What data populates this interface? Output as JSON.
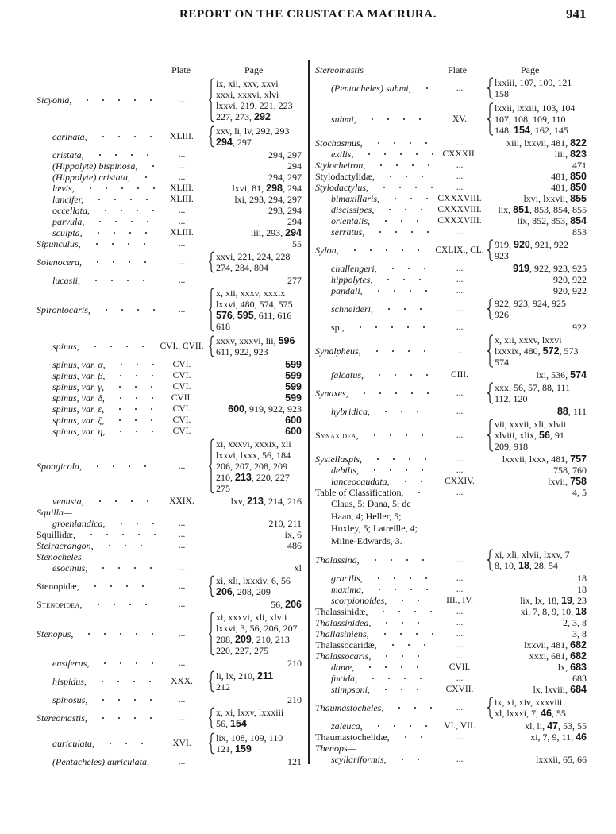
{
  "header": {
    "title": "REPORT ON THE CRUSTACEA MACRURA.",
    "page_number": "941"
  },
  "column_headers": {
    "plate": "Plate",
    "page": "Page"
  },
  "left_column": [
    {
      "name": "Sicyonia,",
      "style": "it",
      "level": 0,
      "plate": "...",
      "pages": [
        "ix, xii, xxv, xxvi",
        "xxxi, xxxvi, xlvi",
        "lxxvi, 219, 221, 223",
        "227, 273, 292"
      ],
      "bold": [
        "292"
      ]
    },
    {
      "name": "carinata,",
      "style": "it",
      "level": 1,
      "plate": "XLIII.",
      "pages": [
        "xxv, li, lv, 292, 293",
        "294, 297"
      ],
      "bold": [
        "294"
      ]
    },
    {
      "name": "cristata,",
      "style": "it",
      "level": 1,
      "plate": "...",
      "pages": [
        "294, 297"
      ]
    },
    {
      "name": "(Hippolyte) bispinosa,",
      "style": "it",
      "level": 1,
      "plate": "...",
      "pages": [
        "294"
      ]
    },
    {
      "name": "(Hippolyte) cristata,",
      "style": "it",
      "level": 1,
      "plate": "...",
      "pages": [
        "294, 297"
      ]
    },
    {
      "name": "lævis,",
      "style": "it",
      "level": 1,
      "plate": "XLIII.",
      "pages": [
        "lxvi, 81, 298, 294"
      ],
      "bold": [
        "298"
      ]
    },
    {
      "name": "lancifer,",
      "style": "it",
      "level": 1,
      "plate": "XLIII.",
      "pages": [
        "lxi, 293, 294, 297"
      ]
    },
    {
      "name": "occellata,",
      "style": "it",
      "level": 1,
      "plate": "...",
      "pages": [
        "293, 294"
      ]
    },
    {
      "name": "parvula,",
      "style": "it",
      "level": 1,
      "plate": "...",
      "pages": [
        "294"
      ]
    },
    {
      "name": "sculpta,",
      "style": "it",
      "level": 1,
      "plate": "XLIII.",
      "pages": [
        "liii, 293, 294"
      ],
      "bold": [
        "294"
      ]
    },
    {
      "name": "Sipunculus,",
      "style": "it",
      "level": 0,
      "plate": "...",
      "pages": [
        "55"
      ]
    },
    {
      "name": "Solenocera,",
      "style": "it",
      "level": 0,
      "plate": "...",
      "pages": [
        "xxvi, 221, 224, 228",
        "274, 284, 804"
      ]
    },
    {
      "name": "lucasii,",
      "style": "it",
      "level": 1,
      "plate": "...",
      "pages": [
        "277"
      ]
    },
    {
      "name": "Spirontocaris,",
      "style": "it",
      "level": 0,
      "plate": "...",
      "pages": [
        "x, xii, xxxv, xxxix",
        "lxxvi, 480, 574, 575",
        "576, 595, 611, 616",
        "618"
      ],
      "bold": [
        "576",
        "595"
      ]
    },
    {
      "name": "spinus,",
      "style": "it",
      "level": 1,
      "plate": "CVI., CVII.",
      "pages": [
        "xxxv, xxxvi, lii, 596",
        "611, 922, 923"
      ],
      "bold": [
        "596"
      ]
    },
    {
      "name": "spinus, var. α,",
      "style": "it",
      "level": 1,
      "plate": "CVI.",
      "pages": [
        "599"
      ],
      "bold": [
        "599"
      ]
    },
    {
      "name": "spinus, var. β,",
      "style": "it",
      "level": 1,
      "plate": "CVI.",
      "pages": [
        "599"
      ],
      "bold": [
        "599"
      ]
    },
    {
      "name": "spinus, var. γ,",
      "style": "it",
      "level": 1,
      "plate": "CVI.",
      "pages": [
        "599"
      ],
      "bold": [
        "599"
      ]
    },
    {
      "name": "spinus, var. δ,",
      "style": "it",
      "level": 1,
      "plate": "CVII.",
      "pages": [
        "599"
      ],
      "bold": [
        "599"
      ]
    },
    {
      "name": "spinus, var. ε,",
      "style": "it",
      "level": 1,
      "plate": "CVI.",
      "pages": [
        "600, 919, 922, 923"
      ],
      "bold": [
        "600"
      ]
    },
    {
      "name": "spinus, var. ζ,",
      "style": "it",
      "level": 1,
      "plate": "CVI.",
      "pages": [
        "600"
      ],
      "bold": [
        "600"
      ]
    },
    {
      "name": "spinus, var. η,",
      "style": "it",
      "level": 1,
      "plate": "CVI.",
      "pages": [
        "600"
      ],
      "bold": [
        "600"
      ]
    },
    {
      "name": "Spongicola,",
      "style": "it",
      "level": 0,
      "plate": "...",
      "pages": [
        "xi, xxxvi, xxxix, xli",
        "lxxvi, lxxx, 56, 184",
        "206, 207, 208, 209",
        "210, 213, 220, 227",
        "275"
      ],
      "bold": [
        "213"
      ]
    },
    {
      "name": "venusta,",
      "style": "it",
      "level": 1,
      "plate": "XXIX.",
      "pages": [
        "lxv, 213, 214, 216"
      ],
      "bold": [
        "213"
      ]
    },
    {
      "name": "Squilla—",
      "style": "it",
      "level": 0
    },
    {
      "name": "groenlandica,",
      "style": "it",
      "level": 1,
      "plate": "...",
      "pages": [
        "210, 211"
      ]
    },
    {
      "name": "Squillidæ,",
      "style": "rm",
      "level": 0,
      "plate": "...",
      "pages": [
        "ix, 6"
      ]
    },
    {
      "name": "Steiracrangon,",
      "style": "it",
      "level": 0,
      "plate": "...",
      "pages": [
        "486"
      ]
    },
    {
      "name": "Stenocheles—",
      "style": "it",
      "level": 0
    },
    {
      "name": "esocinus,",
      "style": "it",
      "level": 1,
      "plate": "...",
      "pages": [
        "xl"
      ]
    },
    {
      "name": "Stenopidæ,",
      "style": "rm",
      "level": 0,
      "plate": "...",
      "pages": [
        "xi, xli, lxxxiv, 6, 56",
        "206, 208, 209"
      ],
      "bold": [
        "206"
      ]
    },
    {
      "name": "Stenopidea,",
      "style": "sc",
      "level": 0,
      "plate": "...",
      "pages": [
        "56, 206"
      ],
      "bold": [
        "206"
      ]
    },
    {
      "name": "Stenopus,",
      "style": "it",
      "level": 0,
      "plate": "...",
      "pages": [
        "xi, xxxvi, xli, xlvii",
        "lxxvi, 3, 56, 206, 207",
        "208, 209, 210, 213",
        "220, 227, 275"
      ],
      "bold": [
        "209"
      ]
    },
    {
      "name": "ensiferus,",
      "style": "it",
      "level": 1,
      "plate": "...",
      "pages": [
        "210"
      ]
    },
    {
      "name": "hispidus,",
      "style": "it",
      "level": 1,
      "plate": "XXX.",
      "pages": [
        "li, lx, 210, 211",
        "212"
      ],
      "bold": [
        "211"
      ]
    },
    {
      "name": "spinosus,",
      "style": "it",
      "level": 1,
      "plate": "...",
      "pages": [
        "210"
      ]
    },
    {
      "name": "Stereomastis,",
      "style": "it",
      "level": 0,
      "plate": "...",
      "pages": [
        "x, xi, lxxv, lxxxiii",
        "56, 154"
      ],
      "bold": [
        "154"
      ]
    },
    {
      "name": "auriculata,",
      "style": "it",
      "level": 1,
      "plate": "XVI.",
      "pages": [
        "lix, 108, 109, 110",
        "121, 159"
      ],
      "bold": [
        "159"
      ]
    },
    {
      "name": "(Pentacheles) auriculata,",
      "style": "it",
      "level": 1,
      "plate": "...",
      "pages": [
        "121"
      ]
    }
  ],
  "right_column": [
    {
      "name": "Stereomastis—",
      "style": "it",
      "level": 0
    },
    {
      "name": "(Pentacheles) suhmi,",
      "style": "it",
      "level": 1,
      "plate": "...",
      "pages": [
        "lxxiii, 107, 109, 121",
        "158"
      ]
    },
    {
      "name": "suhmi,",
      "style": "it",
      "level": 1,
      "plate": "XV.",
      "pages": [
        "lxxii, lxxiii, 103, 104",
        "107, 108, 109, 110",
        "148, 154, 162, 145"
      ],
      "bold": [
        "154"
      ]
    },
    {
      "name": "Stochasmus,",
      "style": "it",
      "level": 0,
      "plate": "...",
      "pages": [
        "xiii, lxxvii, 481, 822"
      ],
      "bold": [
        "822"
      ]
    },
    {
      "name": "exilis,",
      "style": "it",
      "level": 1,
      "plate": "CXXXII.",
      "pages": [
        "liii, 823"
      ],
      "bold": [
        "823"
      ]
    },
    {
      "name": "Stylocheiron,",
      "style": "it",
      "level": 0,
      "plate": "...",
      "pages": [
        "471"
      ]
    },
    {
      "name": "Stylodactylidæ,",
      "style": "rm",
      "level": 0,
      "plate": "...",
      "pages": [
        "481, 850"
      ],
      "bold": [
        "850"
      ]
    },
    {
      "name": "Stylodactylus,",
      "style": "it",
      "level": 0,
      "plate": "...",
      "pages": [
        "481, 850"
      ],
      "bold": [
        "850"
      ]
    },
    {
      "name": "bimaxillaris,",
      "style": "it",
      "level": 1,
      "plate": "CXXXVIII.",
      "pages": [
        "lxvi, lxxvii, 855"
      ],
      "bold": [
        "855"
      ]
    },
    {
      "name": "discissipes,",
      "style": "it",
      "level": 1,
      "plate": "CXXXVIII.",
      "pages": [
        "lix, 851, 853, 854, 855"
      ],
      "bold": [
        "851"
      ]
    },
    {
      "name": "orientalis,",
      "style": "it",
      "level": 1,
      "plate": "CXXXVIII.",
      "pages": [
        "lix, 852, 853, 854"
      ],
      "bold": [
        "854"
      ]
    },
    {
      "name": "serratus,",
      "style": "it",
      "level": 1,
      "plate": "...",
      "pages": [
        "853"
      ]
    },
    {
      "name": "Sylon,",
      "style": "it",
      "level": 0,
      "plate": "CXLIX., CL.",
      "pages": [
        "919, 920, 921, 922",
        "923"
      ],
      "bold": [
        "920"
      ]
    },
    {
      "name": "challengeri,",
      "style": "it",
      "level": 1,
      "plate": "...",
      "pages": [
        "919, 922, 923, 925"
      ],
      "bold": [
        "919"
      ]
    },
    {
      "name": "hippolytes,",
      "style": "it",
      "level": 1,
      "plate": "...",
      "pages": [
        "920, 922"
      ]
    },
    {
      "name": "pandali,",
      "style": "it",
      "level": 1,
      "plate": "...",
      "pages": [
        "920, 922"
      ]
    },
    {
      "name": "schneideri,",
      "style": "it",
      "level": 1,
      "plate": "...",
      "pages": [
        "922, 923, 924, 925",
        "926"
      ]
    },
    {
      "name": "sp.,",
      "style": "rm",
      "level": 1,
      "plate": "...",
      "pages": [
        "922"
      ]
    },
    {
      "name": "Synalpheus,",
      "style": "it",
      "level": 0,
      "plate": "..",
      "pages": [
        "x, xii, xxxv, lxxvi",
        "lxxxix, 480, 572, 573",
        "574"
      ],
      "bold": [
        "572"
      ]
    },
    {
      "name": "falcatus,",
      "style": "it",
      "level": 1,
      "plate": "CIII.",
      "pages": [
        "lxi, 536, 574"
      ],
      "bold": [
        "574"
      ]
    },
    {
      "name": "Synaxes,",
      "style": "it",
      "level": 0,
      "plate": "...",
      "pages": [
        "xxx, 56, 57, 88, 111",
        "112, 120"
      ]
    },
    {
      "name": "hybridica,",
      "style": "it",
      "level": 1,
      "plate": "...",
      "pages": [
        "88, 111"
      ],
      "bold": [
        "88"
      ]
    },
    {
      "name": "Synaxidea,",
      "style": "sc",
      "level": 0,
      "plate": "...",
      "pages": [
        "vii, xxvii, xli, xlvii",
        "xlviii, xlix, 56, 91",
        "209, 918"
      ],
      "bold": [
        "56"
      ]
    },
    {
      "name": "Systellaspis,",
      "style": "it",
      "level": 0,
      "plate": "...",
      "pages": [
        "lxxvii, lxxx, 481, 757"
      ],
      "bold": [
        "757"
      ]
    },
    {
      "name": "debilis,",
      "style": "it",
      "level": 1,
      "plate": "...",
      "pages": [
        "758, 760"
      ]
    },
    {
      "name": "lanceocaudata,",
      "style": "it",
      "level": 1,
      "plate": "CXXIV.",
      "pages": [
        "lxvii, 758"
      ],
      "bold": [
        "758"
      ]
    },
    {
      "name": "Table of Classification,",
      "style": "rm",
      "level": 0,
      "plate": "...",
      "pages": [
        "4, 5"
      ],
      "continuation": [
        "Claus, 5; Dana, 5; de",
        "Haan, 4; Heller, 5;",
        "Huxley, 5; Latreille, 4;",
        "Milne-Edwards, 3."
      ]
    },
    {
      "name": "Thalassina,",
      "style": "it",
      "level": 0,
      "plate": "...",
      "pages": [
        "xi, xli, xlvii, lxxv, 7",
        "8, 10, 18, 28, 54"
      ],
      "bold": [
        "18"
      ]
    },
    {
      "name": "gracilis,",
      "style": "it",
      "level": 1,
      "plate": "...",
      "pages": [
        "18"
      ]
    },
    {
      "name": "maxima,",
      "style": "it",
      "level": 1,
      "plate": "...",
      "pages": [
        "18"
      ]
    },
    {
      "name": "scorpionoides,",
      "style": "it",
      "level": 1,
      "plate": "III., IV.",
      "pages": [
        "lix, lx, 18, 19, 23"
      ],
      "bold": [
        "19"
      ]
    },
    {
      "name": "Thalassinidæ,",
      "style": "rm",
      "level": 0,
      "plate": "...",
      "pages": [
        "xi, 7, 8, 9, 10, 18"
      ],
      "bold": [
        "18"
      ]
    },
    {
      "name": "Thalassinidea,",
      "style": "it",
      "level": 0,
      "plate": "...",
      "pages": [
        "2, 3, 8"
      ]
    },
    {
      "name": "Thallasiniens,",
      "style": "it",
      "level": 0,
      "plate": "...",
      "pages": [
        "3, 8"
      ]
    },
    {
      "name": "Thalassocaridæ,",
      "style": "rm",
      "level": 0,
      "plate": "...",
      "pages": [
        "lxxvii, 481, 682"
      ],
      "bold": [
        "682"
      ]
    },
    {
      "name": "Thalassocaris,",
      "style": "it",
      "level": 0,
      "plate": "...",
      "pages": [
        "xxxi, 681, 682"
      ],
      "bold": [
        "682"
      ]
    },
    {
      "name": "danæ,",
      "style": "it",
      "level": 1,
      "plate": "CVII.",
      "pages": [
        "lx, 683"
      ],
      "bold": [
        "683"
      ]
    },
    {
      "name": "fucida,",
      "style": "it",
      "level": 1,
      "plate": "...",
      "pages": [
        "683"
      ]
    },
    {
      "name": "stimpsoni,",
      "style": "it",
      "level": 1,
      "plate": "CXVII.",
      "pages": [
        "lx, lxviii, 684"
      ],
      "bold": [
        "684"
      ]
    },
    {
      "name": "Thaumastocheles,",
      "style": "it",
      "level": 0,
      "plate": "...",
      "pages": [
        "ix, xi, xiv, xxxviii",
        "xl, lxxxi, 7, 46, 55"
      ],
      "bold": [
        "46"
      ]
    },
    {
      "name": "zaleuca,",
      "style": "it",
      "level": 1,
      "plate": "VI., VII.",
      "pages": [
        "xl, li, 47, 53, 55"
      ],
      "bold": [
        "47"
      ]
    },
    {
      "name": "Thaumastochelidæ,",
      "style": "rm",
      "level": 0,
      "plate": "...",
      "pages": [
        "xi, 7, 9, 11, 46"
      ],
      "bold": [
        "46"
      ]
    },
    {
      "name": "Thenops—",
      "style": "it",
      "level": 0
    },
    {
      "name": "scyllariformis,",
      "style": "it",
      "level": 1,
      "plate": "...",
      "pages": [
        "lxxxii, 65, 66"
      ]
    }
  ]
}
